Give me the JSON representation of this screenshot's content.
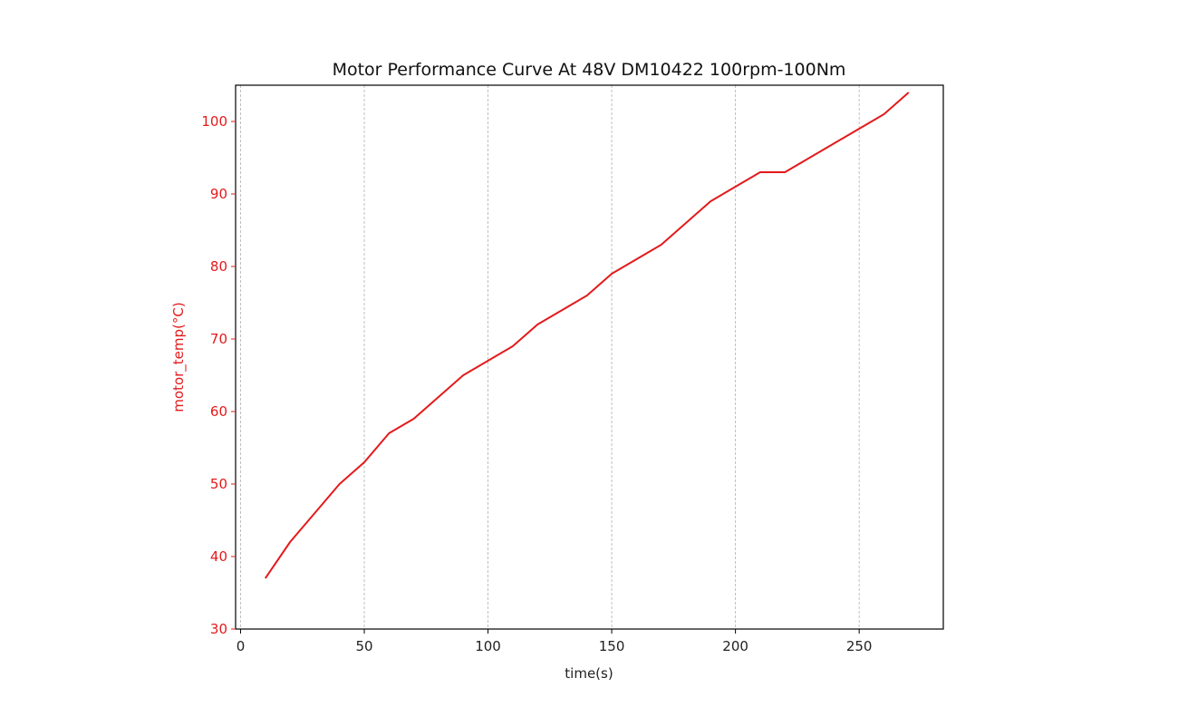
{
  "chart_data": {
    "type": "line",
    "title": "Motor Performance Curve At 48V DM10422 100rpm-100Nm",
    "xlabel": "time(s)",
    "ylabel": "motor_temp(°C)",
    "xlim": [
      -2,
      284
    ],
    "ylim": [
      30,
      105
    ],
    "xticks": [
      0,
      50,
      100,
      150,
      200,
      250
    ],
    "yticks": [
      30,
      40,
      50,
      60,
      70,
      80,
      90,
      100
    ],
    "grid": "vertical dashed",
    "series": [
      {
        "color": "#e31a1c",
        "x": [
          10,
          20,
          30,
          40,
          50,
          60,
          70,
          80,
          90,
          100,
          110,
          120,
          130,
          140,
          150,
          160,
          170,
          180,
          190,
          200,
          210,
          220,
          230,
          240,
          250,
          260,
          270
        ],
        "y": [
          37,
          42,
          46,
          50,
          53,
          57,
          59,
          62,
          65,
          67,
          69,
          72,
          74,
          76,
          79,
          81,
          83,
          86,
          89,
          91,
          93,
          93,
          95,
          97,
          99,
          101,
          104
        ]
      }
    ]
  }
}
